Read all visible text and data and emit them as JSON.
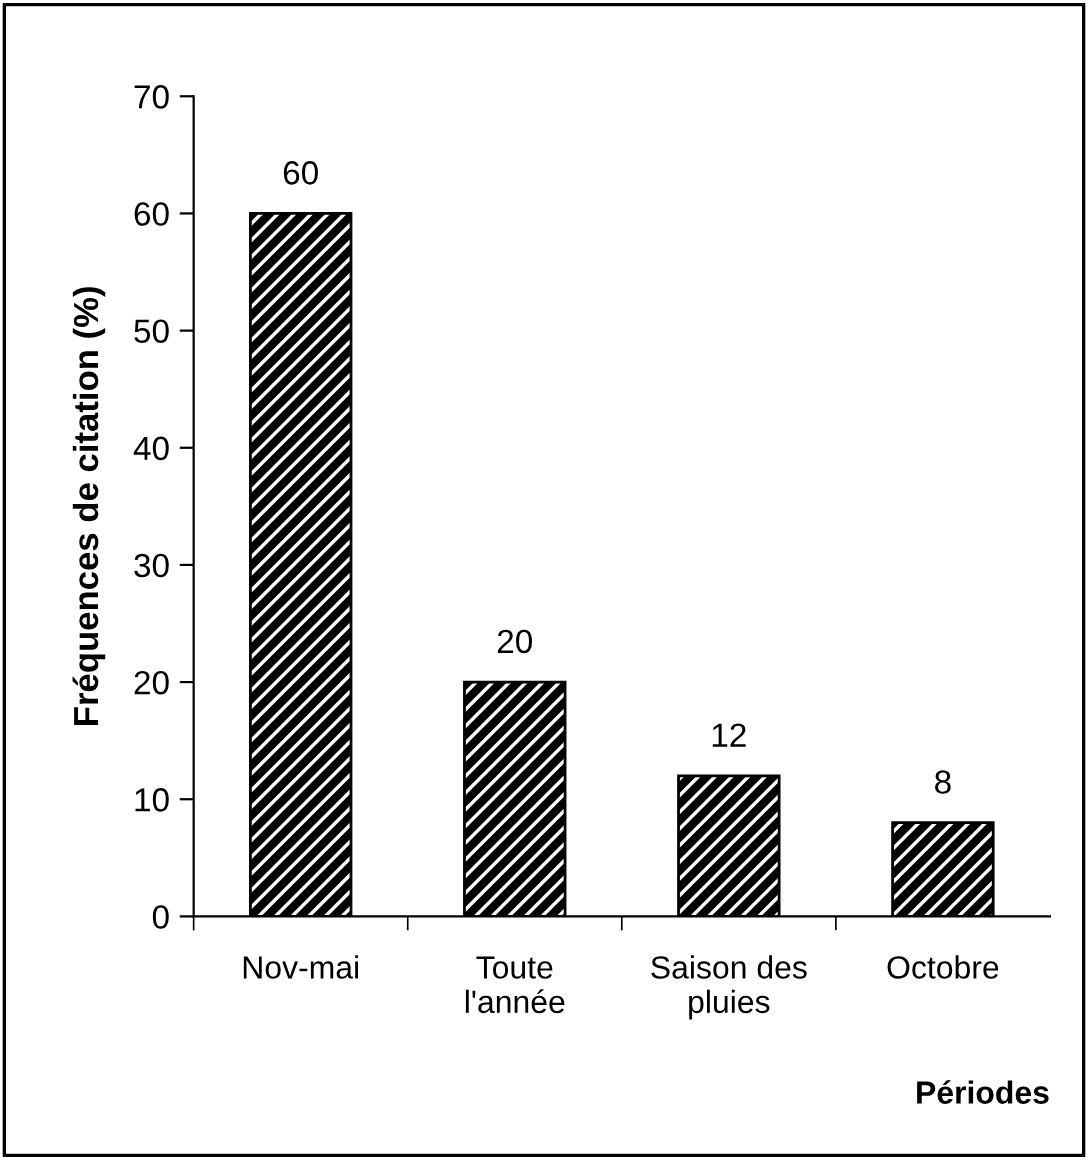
{
  "chart_data": {
    "type": "bar",
    "categories": [
      "Nov-mai",
      "Toute\nl'année",
      "Saison des\npluies",
      "Octobre"
    ],
    "values": [
      60,
      20,
      12,
      8
    ],
    "color": "#000000",
    "xlabel": "Périodes",
    "ylabel": "Fréquences de citation (%)",
    "ylim": [
      0,
      70
    ],
    "yticks": [
      0,
      10,
      20,
      30,
      40,
      50,
      60,
      70
    ],
    "data_labels": true,
    "grid": false,
    "legend": false
  }
}
